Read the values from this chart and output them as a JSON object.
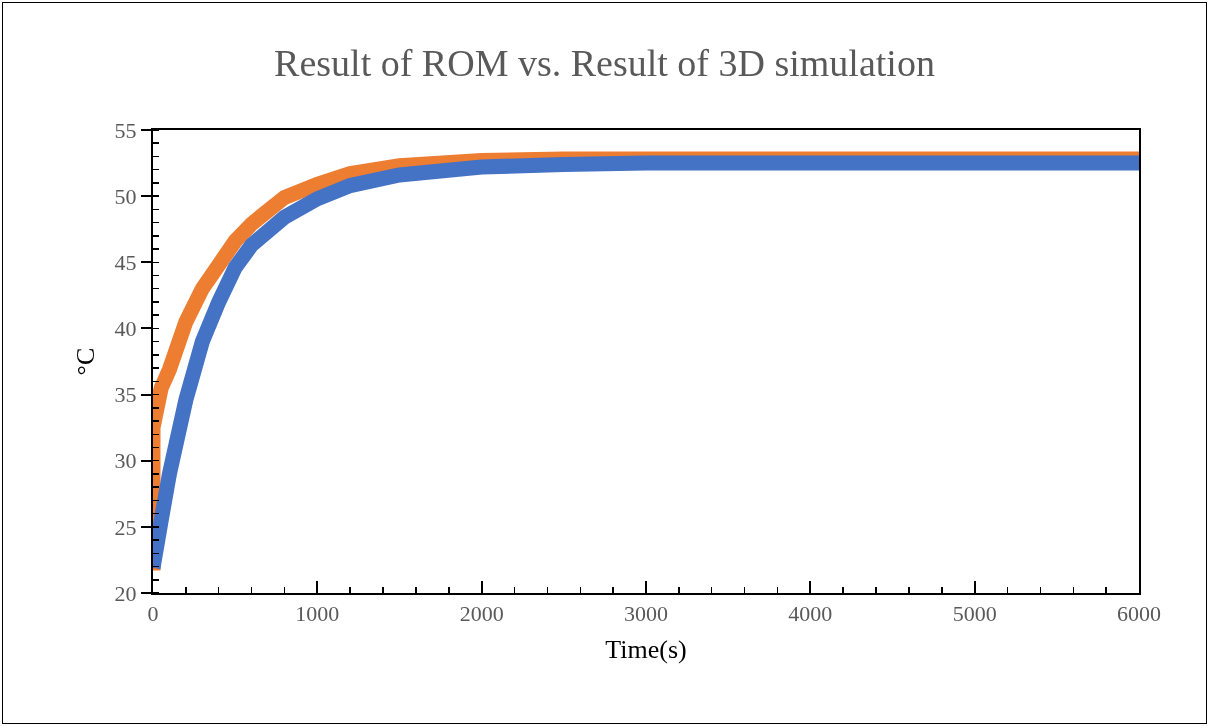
{
  "chart_data": {
    "type": "line",
    "title": "Result of ROM vs. Result of 3D simulation",
    "xlabel": "Time(s)",
    "ylabel": "°C",
    "xlim": [
      0,
      6000
    ],
    "xticks": [
      0,
      1000,
      2000,
      3000,
      4000,
      5000,
      6000
    ],
    "ylim": [
      20,
      55
    ],
    "yticks": [
      20,
      25,
      30,
      35,
      40,
      45,
      50,
      55
    ],
    "marker": "none",
    "line_style": "solid",
    "series": [
      {
        "color": "#ed7d31",
        "x": [
          0,
          0,
          0,
          0,
          25,
          50,
          100,
          200,
          300,
          400,
          500,
          600,
          800,
          1000,
          1200,
          1500,
          2000,
          2500,
          3000,
          4000,
          5000,
          6000
        ],
        "values": [
          21.7,
          25,
          28,
          32.5,
          34,
          35.5,
          36.9,
          40.5,
          43,
          44.8,
          46.6,
          47.9,
          49.9,
          50.9,
          51.7,
          52.3,
          52.7,
          52.8,
          52.8,
          52.8,
          52.8,
          52.8
        ]
      },
      {
        "color": "#4472c4",
        "x": [
          0,
          50,
          100,
          200,
          300,
          400,
          500,
          600,
          800,
          1000,
          1200,
          1500,
          2000,
          2500,
          3000,
          4000,
          5000,
          6000
        ],
        "values": [
          21.9,
          25.5,
          29,
          34.6,
          39,
          42,
          44.6,
          46.3,
          48.4,
          49.8,
          50.8,
          51.6,
          52.2,
          52.4,
          52.5,
          52.5,
          52.5,
          52.5
        ]
      }
    ]
  }
}
